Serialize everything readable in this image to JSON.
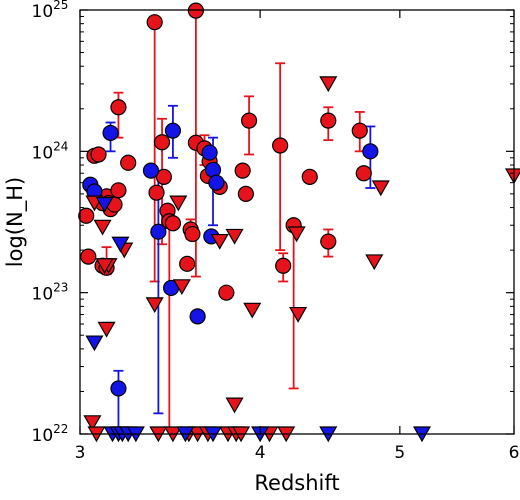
{
  "chart_data": {
    "type": "scatter",
    "xlabel": "Redshift",
    "ylabel": "log(N_H)",
    "x_scale": "log",
    "y_scale": "log",
    "xlim": [
      3.0,
      6.0
    ],
    "ylim": [
      1e+22,
      1e+25
    ],
    "x_ticks": [
      {
        "value": 3,
        "label": "3"
      },
      {
        "value": 4,
        "label": "4"
      },
      {
        "value": 5,
        "label": "5"
      },
      {
        "value": 6,
        "label": "6"
      }
    ],
    "y_ticks": [
      {
        "value": 1e+22,
        "label": "10",
        "exp": "22"
      },
      {
        "value": 1e+23,
        "label": "10",
        "exp": "23"
      },
      {
        "value": 1e+24,
        "label": "10",
        "exp": "24"
      },
      {
        "value": 1e+25,
        "label": "10",
        "exp": "25"
      }
    ],
    "grid": false,
    "colors": {
      "red": "#e6141a",
      "blue": "#1414e6",
      "edge": "#000000"
    },
    "series": [
      {
        "color": "red",
        "marker": "circle",
        "points": [
          {
            "x": 3.38,
            "y": 8.2e+24,
            "err": [
              1.2e+23,
              8.2e+24
            ]
          },
          {
            "x": 3.61,
            "y": 9.9e+24,
            "err": [
              1.3e+23,
              9.9e+24
            ]
          },
          {
            "x": 3.07,
            "y": 9.3e+23
          },
          {
            "x": 3.09,
            "y": 9.5e+23
          },
          {
            "x": 3.03,
            "y": 3.5e+23
          },
          {
            "x": 3.04,
            "y": 1.8e+23
          },
          {
            "x": 3.11,
            "y": 4.3e+23
          },
          {
            "x": 3.13,
            "y": 4.8e+23
          },
          {
            "x": 3.14,
            "y": 4.3e+23
          },
          {
            "x": 3.15,
            "y": 3.9e+23
          },
          {
            "x": 3.11,
            "y": 1.55e+23
          },
          {
            "x": 3.13,
            "y": 1.5e+23,
            "err": [
              1.35e+23,
              2.1e+23
            ]
          },
          {
            "x": 3.17,
            "y": 4.2e+23
          },
          {
            "x": 3.19,
            "y": 5.3e+23
          },
          {
            "x": 3.19,
            "y": 2.05e+24,
            "err": [
              1.25e+24,
              2.6e+24
            ]
          },
          {
            "x": 3.24,
            "y": 8.3e+23
          },
          {
            "x": 3.39,
            "y": 5.1e+23
          },
          {
            "x": 3.42,
            "y": 1.16e+24,
            "err": [
              2.2e+23,
              1.7e+24
            ]
          },
          {
            "x": 3.43,
            "y": 6.6e+23
          },
          {
            "x": 3.45,
            "y": 3.8e+23
          },
          {
            "x": 3.46,
            "y": 3.2e+23,
            "err": [
              1.1e+22,
              3.2e+23
            ]
          },
          {
            "x": 3.48,
            "y": 3.1e+23
          },
          {
            "x": 3.56,
            "y": 1.6e+23
          },
          {
            "x": 3.58,
            "y": 2.8e+23,
            "err": [
              2.4e+23,
              3.3e+23
            ]
          },
          {
            "x": 3.59,
            "y": 2.6e+23
          },
          {
            "x": 3.61,
            "y": 1.15e+24
          },
          {
            "x": 3.66,
            "y": 1.05e+24,
            "err": [
              8e+23,
              1.3e+24
            ]
          },
          {
            "x": 3.68,
            "y": 6.7e+23
          },
          {
            "x": 3.69,
            "y": 8.5e+23
          },
          {
            "x": 3.75,
            "y": 5.6e+23
          },
          {
            "x": 3.79,
            "y": 1e+23
          },
          {
            "x": 3.89,
            "y": 7.3e+23
          },
          {
            "x": 3.93,
            "y": 1.65e+24,
            "err": [
              9.5e+23,
              2.45e+24
            ]
          },
          {
            "x": 3.91,
            "y": 5e+23
          },
          {
            "x": 4.13,
            "y": 1.1e+24,
            "err": [
              2e+23,
              4.2e+24
            ]
          },
          {
            "x": 4.15,
            "y": 1.55e+23,
            "err": [
              1.2e+23,
              1.9e+23
            ]
          },
          {
            "x": 4.22,
            "y": 3e+23,
            "err": [
              2.1e+22,
              3e+23
            ]
          },
          {
            "x": 4.33,
            "y": 6.6e+23
          },
          {
            "x": 4.46,
            "y": 1.65e+24,
            "err": [
              1.2e+24,
              2.05e+24
            ]
          },
          {
            "x": 4.46,
            "y": 2.3e+23,
            "err": [
              1.8e+23,
              2.8e+23
            ]
          },
          {
            "x": 4.69,
            "y": 1.4e+24,
            "err": [
              1e+24,
              1.9e+24
            ]
          },
          {
            "x": 4.72,
            "y": 7e+23
          }
        ]
      },
      {
        "color": "blue",
        "marker": "circle",
        "points": [
          {
            "x": 3.05,
            "y": 5.8e+23
          },
          {
            "x": 3.07,
            "y": 5.2e+23
          },
          {
            "x": 3.15,
            "y": 1.35e+24,
            "err": [
              1e+24,
              1.6e+24
            ]
          },
          {
            "x": 3.19,
            "y": 2.1e+22,
            "err": [
              1e+22,
              2.8e+22
            ]
          },
          {
            "x": 3.36,
            "y": 7.3e+23
          },
          {
            "x": 3.4,
            "y": 2.7e+23,
            "err": [
              1.4e+22,
              7.3e+23
            ]
          },
          {
            "x": 3.48,
            "y": 1.4e+24,
            "err": [
              9e+23,
              2.1e+24
            ]
          },
          {
            "x": 3.47,
            "y": 1.08e+23
          },
          {
            "x": 3.62,
            "y": 6.8e+22
          },
          {
            "x": 3.69,
            "y": 9.8e+23
          },
          {
            "x": 3.7,
            "y": 2.5e+23
          },
          {
            "x": 3.71,
            "y": 7.4e+23,
            "err": [
              3e+23,
              1.25e+24
            ]
          },
          {
            "x": 3.73,
            "y": 6e+23
          },
          {
            "x": 4.77,
            "y": 1e+24,
            "err": [
              5.5e+23,
              1.5e+24
            ]
          }
        ]
      },
      {
        "color": "red",
        "marker": "triangle-down",
        "points": [
          {
            "x": 3.07,
            "y": 4.3e+23
          },
          {
            "x": 3.11,
            "y": 2.9e+23
          },
          {
            "x": 3.14,
            "y": 1.55e+23
          },
          {
            "x": 3.12,
            "y": 1.55e+23
          },
          {
            "x": 3.13,
            "y": 5.5e+22
          },
          {
            "x": 3.06,
            "y": 1.2e+22
          },
          {
            "x": 3.08,
            "y": 1e+22
          },
          {
            "x": 3.22,
            "y": 2e+23
          },
          {
            "x": 3.38,
            "y": 8.2e+22
          },
          {
            "x": 3.4,
            "y": 1e+22
          },
          {
            "x": 3.48,
            "y": 1e+22
          },
          {
            "x": 3.57,
            "y": 1e+22
          },
          {
            "x": 3.51,
            "y": 4.3e+23
          },
          {
            "x": 3.53,
            "y": 1.1e+23
          },
          {
            "x": 3.62,
            "y": 1e+22
          },
          {
            "x": 3.68,
            "y": 1e+22
          },
          {
            "x": 3.75,
            "y": 2.3e+23
          },
          {
            "x": 3.84,
            "y": 2.5e+23
          },
          {
            "x": 3.8,
            "y": 1e+22
          },
          {
            "x": 3.85,
            "y": 1e+22
          },
          {
            "x": 3.88,
            "y": 1e+22
          },
          {
            "x": 3.84,
            "y": 1.6e+22
          },
          {
            "x": 3.95,
            "y": 7.5e+22
          },
          {
            "x": 4.06,
            "y": 1e+22
          },
          {
            "x": 4.17,
            "y": 1e+22
          },
          {
            "x": 4.24,
            "y": 2.6e+23
          },
          {
            "x": 4.25,
            "y": 7e+22
          },
          {
            "x": 4.46,
            "y": 3e+24
          },
          {
            "x": 4.8,
            "y": 1.65e+23
          },
          {
            "x": 4.85,
            "y": 5.5e+23
          },
          {
            "x": 6.0,
            "y": 6.7e+23
          }
        ]
      },
      {
        "color": "blue",
        "marker": "triangle-down",
        "points": [
          {
            "x": 3.07,
            "y": 4.4e+22
          },
          {
            "x": 3.16,
            "y": 1e+22
          },
          {
            "x": 3.19,
            "y": 1e+22
          },
          {
            "x": 3.21,
            "y": 1e+22
          },
          {
            "x": 3.24,
            "y": 1e+22
          },
          {
            "x": 3.28,
            "y": 1e+22
          },
          {
            "x": 3.55,
            "y": 1e+22
          },
          {
            "x": 3.71,
            "y": 1e+22
          },
          {
            "x": 4.0,
            "y": 1e+22
          },
          {
            "x": 4.46,
            "y": 1e+22
          },
          {
            "x": 5.18,
            "y": 1e+22
          },
          {
            "x": 3.2,
            "y": 2.2e+23
          },
          {
            "x": 3.12,
            "y": 4.2e+23
          }
        ]
      }
    ]
  }
}
